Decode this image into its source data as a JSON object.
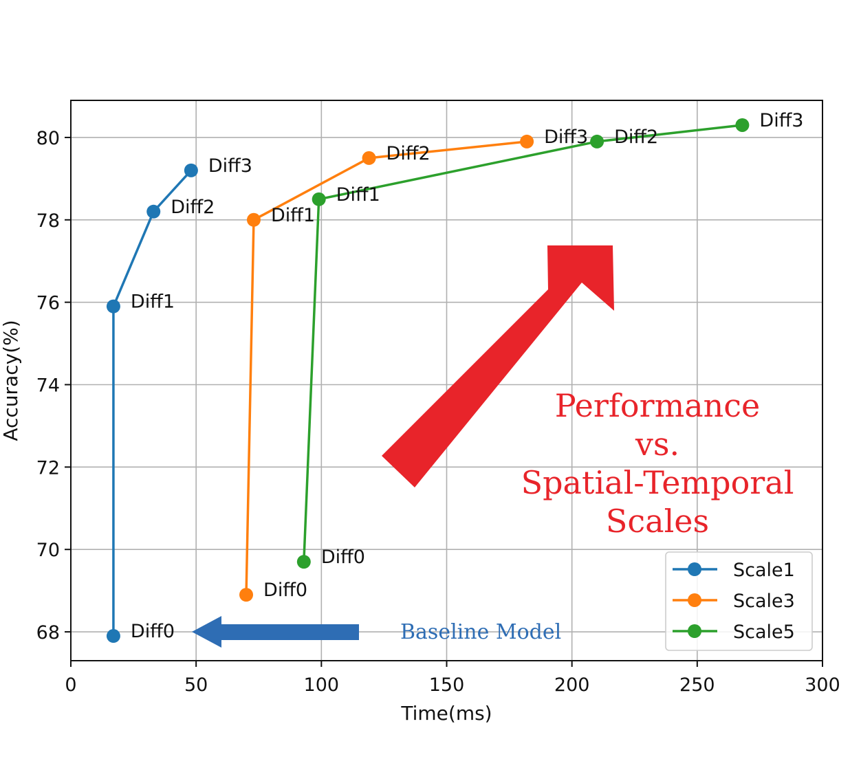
{
  "chart_data": {
    "type": "line",
    "xlabel": "Time(ms)",
    "ylabel": "Accuracy(%)",
    "xlim": [
      0,
      300
    ],
    "ylim": [
      67.3,
      80.9
    ],
    "xticks": [
      0,
      50,
      100,
      150,
      200,
      250,
      300
    ],
    "yticks": [
      68,
      70,
      72,
      74,
      76,
      78,
      80
    ],
    "grid": true,
    "legend_position": "lower-right",
    "series": [
      {
        "name": "Scale1",
        "color": "#1f77b4",
        "points": [
          {
            "x": 17,
            "y": 67.9,
            "label": "Diff0"
          },
          {
            "x": 17,
            "y": 75.9,
            "label": "Diff1"
          },
          {
            "x": 33,
            "y": 78.2,
            "label": "Diff2"
          },
          {
            "x": 48,
            "y": 79.2,
            "label": "Diff3"
          }
        ]
      },
      {
        "name": "Scale3",
        "color": "#ff7f0e",
        "points": [
          {
            "x": 70,
            "y": 68.9,
            "label": "Diff0"
          },
          {
            "x": 73,
            "y": 78.0,
            "label": "Diff1"
          },
          {
            "x": 119,
            "y": 79.5,
            "label": "Diff2"
          },
          {
            "x": 182,
            "y": 79.9,
            "label": "Diff3"
          }
        ]
      },
      {
        "name": "Scale5",
        "color": "#2ca02c",
        "points": [
          {
            "x": 93,
            "y": 69.7,
            "label": "Diff0"
          },
          {
            "x": 99,
            "y": 78.5,
            "label": "Diff1"
          },
          {
            "x": 210,
            "y": 79.9,
            "label": "Diff2"
          },
          {
            "x": 268,
            "y": 80.3,
            "label": "Diff3"
          }
        ]
      }
    ],
    "annotations": {
      "performance_lines": [
        "Performance",
        "vs.",
        "Spatial-Temporal",
        "Scales"
      ],
      "baseline_text": "Baseline Model"
    },
    "annotation_colors": {
      "red": "#e8242a",
      "blue": "#2e6db4"
    }
  }
}
